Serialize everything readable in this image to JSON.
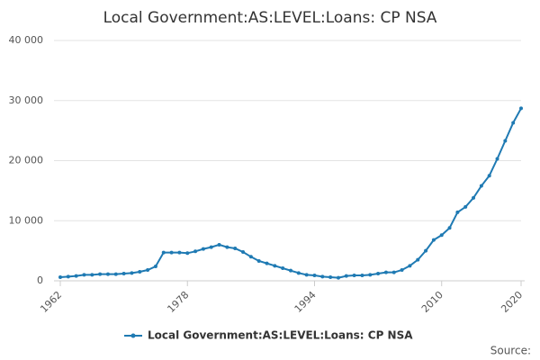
{
  "chart_data": {
    "type": "line",
    "title": "Local Government:AS:LEVEL:Loans: CP NSA",
    "source": "Source:",
    "x": [
      1962,
      1963,
      1964,
      1965,
      1966,
      1967,
      1968,
      1969,
      1970,
      1971,
      1972,
      1973,
      1974,
      1975,
      1976,
      1977,
      1978,
      1979,
      1980,
      1981,
      1982,
      1983,
      1984,
      1985,
      1986,
      1987,
      1988,
      1989,
      1990,
      1991,
      1992,
      1993,
      1994,
      1995,
      1996,
      1997,
      1998,
      1999,
      2000,
      2001,
      2002,
      2003,
      2004,
      2005,
      2006,
      2007,
      2008,
      2009,
      2010,
      2011,
      2012,
      2013,
      2014,
      2015,
      2016,
      2017,
      2018,
      2019,
      2020
    ],
    "series": [
      {
        "name": "Local Government:AS:LEVEL:Loans: CP NSA",
        "color": "#1f7ab3",
        "values": [
          600,
          700,
          800,
          1000,
          1000,
          1100,
          1100,
          1100,
          1200,
          1300,
          1500,
          1800,
          2400,
          4700,
          4700,
          4700,
          4600,
          4900,
          5300,
          5600,
          6000,
          5600,
          5400,
          4800,
          4000,
          3300,
          2900,
          2500,
          2100,
          1700,
          1300,
          1000,
          900,
          700,
          600,
          500,
          800,
          900,
          900,
          1000,
          1200,
          1400,
          1400,
          1800,
          2500,
          3500,
          5000,
          6800,
          7600,
          8800,
          11400,
          12300,
          13800,
          15800,
          17500,
          20300,
          23300,
          26300,
          28700
        ]
      }
    ],
    "xlim": [
      1962,
      2020
    ],
    "xticks": [
      1962,
      1978,
      1994,
      2010,
      2020
    ],
    "ylim": [
      0,
      40000
    ],
    "yticks": [
      0,
      {
        "value": 10000,
        "label": "10 000"
      },
      {
        "value": 20000,
        "label": "20 000"
      },
      {
        "value": 30000,
        "label": "30 000"
      },
      {
        "value": 40000,
        "label": "40 000"
      }
    ],
    "grid": true
  }
}
